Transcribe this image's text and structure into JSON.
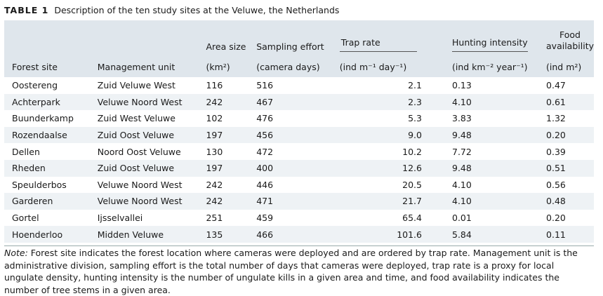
{
  "caption": {
    "number": "TABLE 1",
    "title": "Description of the ten study sites at the Veluwe, the Netherlands"
  },
  "headers": {
    "forest_site": "Forest site",
    "management_unit": "Management unit",
    "area_size": "Area size",
    "area_unit": "(km²)",
    "sampling_effort": "Sampling effort",
    "sampling_unit": "(camera days)",
    "trap_rate": "Trap rate",
    "trap_unit": "(ind m⁻¹ day⁻¹)",
    "hunting_intensity": "Hunting intensity",
    "hunting_unit": "(ind km⁻² year⁻¹)",
    "food_line1": "Food",
    "food_line2": "availability",
    "food_unit": "(ind m²)"
  },
  "rows": [
    {
      "site": "Oostereng",
      "unit": "Zuid Veluwe West",
      "area": "116",
      "effort": "516",
      "trap": "2.1",
      "hunt": "0.13",
      "food": "0.47"
    },
    {
      "site": "Achterpark",
      "unit": "Veluwe Noord West",
      "area": "242",
      "effort": "467",
      "trap": "2.3",
      "hunt": "4.10",
      "food": "0.61"
    },
    {
      "site": "Buunderkamp",
      "unit": "Zuid West Veluwe",
      "area": "102",
      "effort": "476",
      "trap": "5.3",
      "hunt": "3.83",
      "food": "1.32"
    },
    {
      "site": "Rozendaalse",
      "unit": "Zuid Oost Veluwe",
      "area": "197",
      "effort": "456",
      "trap": "9.0",
      "hunt": "9.48",
      "food": "0.20"
    },
    {
      "site": "Dellen",
      "unit": "Noord Oost Veluwe",
      "area": "130",
      "effort": "472",
      "trap": "10.2",
      "hunt": "7.72",
      "food": "0.39"
    },
    {
      "site": "Rheden",
      "unit": "Zuid Oost Veluwe",
      "area": "197",
      "effort": "400",
      "trap": "12.6",
      "hunt": "9.48",
      "food": "0.51"
    },
    {
      "site": "Speulderbos",
      "unit": "Veluwe Noord West",
      "area": "242",
      "effort": "446",
      "trap": "20.5",
      "hunt": "4.10",
      "food": "0.56"
    },
    {
      "site": "Garderen",
      "unit": "Veluwe Noord West",
      "area": "242",
      "effort": "471",
      "trap": "21.7",
      "hunt": "4.10",
      "food": "0.48"
    },
    {
      "site": "Gortel",
      "unit": "Ijsselvallei",
      "area": "251",
      "effort": "459",
      "trap": "65.4",
      "hunt": "0.01",
      "food": "0.20"
    },
    {
      "site": "Hoenderloo",
      "unit": "Midden Veluwe",
      "area": "135",
      "effort": "466",
      "trap": "101.6",
      "hunt": "5.84",
      "food": "0.11"
    }
  ],
  "note": {
    "label": "Note:",
    "text": " Forest site indicates the forest location where cameras were deployed and are ordered by trap rate. Management unit is the administrative division, sampling effort is the total number of days that cameras were deployed, trap rate is a proxy for local ungulate density, hunting intensity is the number of ungulate kills in a given area and time, and food availability indicates the number of tree stems in a given area."
  }
}
